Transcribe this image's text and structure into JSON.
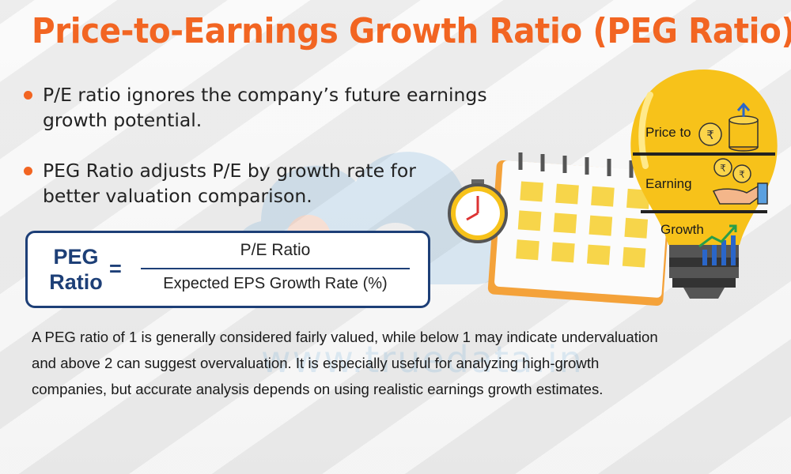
{
  "title": "Price-to-Earnings Growth Ratio (PEG Ratio)",
  "bullets": [
    "P/E ratio ignores the company’s future earnings growth potential.",
    "PEG Ratio adjusts P/E by growth rate for better valuation comparison."
  ],
  "formula": {
    "lhs_line1": "PEG",
    "lhs_line2": "Ratio",
    "equals": "=",
    "numerator": "P/E Ratio",
    "denominator": "Expected EPS Growth Rate (%)"
  },
  "paragraph": "A PEG ratio of 1 is generally considered fairly valued, while below 1 may indicate undervaluation and above 2 can suggest overvaluation. It is especially useful for analyzing high-growth companies, but accurate analysis depends on using realistic earnings growth estimates.",
  "bulb": {
    "label_price": "Price to",
    "label_earning": "Earning",
    "label_growth": "Growth",
    "currency_symbol": "₹"
  },
  "watermark": "www.truedata.in",
  "colors": {
    "accent": "#f26522",
    "navy": "#1d3f77",
    "bulb_yellow": "#f7c21a",
    "watermark_blue": "#3a8fd0"
  },
  "icons": [
    "clock-icon",
    "calendar-icon",
    "lightbulb-icon",
    "coin-stack-icon",
    "hand-coins-icon",
    "growth-chart-icon",
    "watermark-logo-icon"
  ]
}
